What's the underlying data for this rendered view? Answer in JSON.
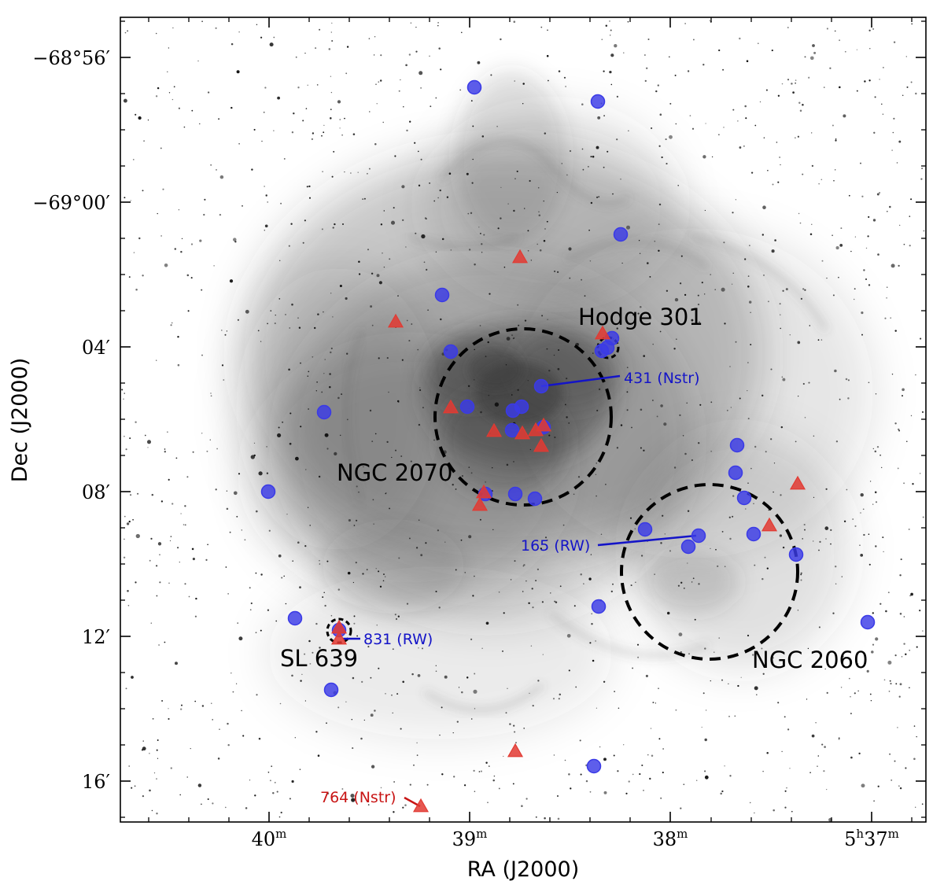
{
  "colors": {
    "blue_marker": "#3a3ae6",
    "red_marker": "#e23a32",
    "blue_label": "#1414c8",
    "red_label": "#c81414",
    "nebula": "#3a3a3a"
  },
  "axes": {
    "xlabel": "RA (J2000)",
    "ylabel": "Dec (J2000)",
    "x_ticks": [
      {
        "label": "40",
        "unit": "m",
        "value_min": 40
      },
      {
        "label": "39",
        "unit": "m",
        "value_min": 39
      },
      {
        "label": "38",
        "unit": "m",
        "value_min": 38
      },
      {
        "label": "5",
        "hour_unit": "h",
        "minutes": "37",
        "unit": "m",
        "value_min": 37
      }
    ],
    "y_ticks": [
      {
        "label": "−68°56′",
        "value_arcmin": -56
      },
      {
        "label": "−69°00′",
        "value_arcmin": 0
      },
      {
        "label": "04′",
        "value_arcmin": 4
      },
      {
        "label": "08′",
        "value_arcmin": 8
      },
      {
        "label": "12′",
        "value_arcmin": 12
      },
      {
        "label": "16′",
        "value_arcmin": 16
      }
    ]
  },
  "regions": [
    {
      "label": "NGC 2070",
      "shape": "dashed-circle"
    },
    {
      "label": "NGC 2060",
      "shape": "dashed-circle"
    },
    {
      "label": "Hodge 301",
      "shape": "dashed-circle"
    },
    {
      "label": "SL 639",
      "shape": "dashed-circle"
    }
  ],
  "annotations": [
    {
      "text": "431 (Nstr)",
      "color": "blue"
    },
    {
      "text": "165 (RW)",
      "color": "blue"
    },
    {
      "text": "831 (RW)",
      "color": "blue"
    },
    {
      "text": "764 (Nstr)",
      "color": "red"
    }
  ],
  "legend_markers": {
    "blue_circle": "blue-circle-marker",
    "red_triangle": "red-triangle-marker"
  }
}
